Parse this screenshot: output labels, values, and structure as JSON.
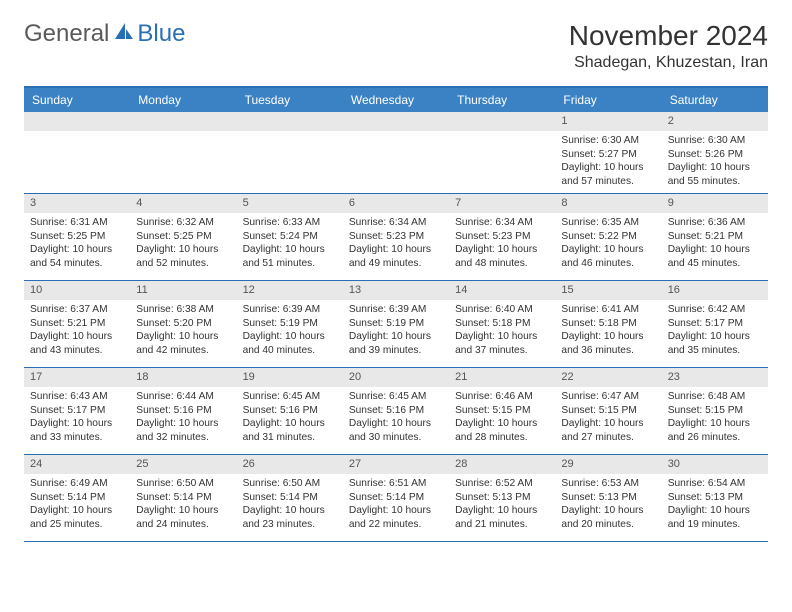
{
  "logo": {
    "general": "General",
    "blue": "Blue"
  },
  "header": {
    "title": "November 2024",
    "location": "Shadegan, Khuzestan, Iran"
  },
  "colors": {
    "header_bar": "#3b82c4",
    "border": "#2a6fb5",
    "day_number_bg": "#e8e8e8",
    "text": "#333333",
    "logo_gray": "#5a5a5a",
    "logo_blue": "#2a6fb5",
    "background": "#ffffff"
  },
  "typography": {
    "title_fontsize": 28,
    "location_fontsize": 16,
    "dayheader_fontsize": 12,
    "cell_fontsize": 10.2
  },
  "day_names": [
    "Sunday",
    "Monday",
    "Tuesday",
    "Wednesday",
    "Thursday",
    "Friday",
    "Saturday"
  ],
  "weeks": [
    [
      {
        "n": "",
        "sunrise": "",
        "sunset": "",
        "daylight": ""
      },
      {
        "n": "",
        "sunrise": "",
        "sunset": "",
        "daylight": ""
      },
      {
        "n": "",
        "sunrise": "",
        "sunset": "",
        "daylight": ""
      },
      {
        "n": "",
        "sunrise": "",
        "sunset": "",
        "daylight": ""
      },
      {
        "n": "",
        "sunrise": "",
        "sunset": "",
        "daylight": ""
      },
      {
        "n": "1",
        "sunrise": "Sunrise: 6:30 AM",
        "sunset": "Sunset: 5:27 PM",
        "daylight": "Daylight: 10 hours and 57 minutes."
      },
      {
        "n": "2",
        "sunrise": "Sunrise: 6:30 AM",
        "sunset": "Sunset: 5:26 PM",
        "daylight": "Daylight: 10 hours and 55 minutes."
      }
    ],
    [
      {
        "n": "3",
        "sunrise": "Sunrise: 6:31 AM",
        "sunset": "Sunset: 5:25 PM",
        "daylight": "Daylight: 10 hours and 54 minutes."
      },
      {
        "n": "4",
        "sunrise": "Sunrise: 6:32 AM",
        "sunset": "Sunset: 5:25 PM",
        "daylight": "Daylight: 10 hours and 52 minutes."
      },
      {
        "n": "5",
        "sunrise": "Sunrise: 6:33 AM",
        "sunset": "Sunset: 5:24 PM",
        "daylight": "Daylight: 10 hours and 51 minutes."
      },
      {
        "n": "6",
        "sunrise": "Sunrise: 6:34 AM",
        "sunset": "Sunset: 5:23 PM",
        "daylight": "Daylight: 10 hours and 49 minutes."
      },
      {
        "n": "7",
        "sunrise": "Sunrise: 6:34 AM",
        "sunset": "Sunset: 5:23 PM",
        "daylight": "Daylight: 10 hours and 48 minutes."
      },
      {
        "n": "8",
        "sunrise": "Sunrise: 6:35 AM",
        "sunset": "Sunset: 5:22 PM",
        "daylight": "Daylight: 10 hours and 46 minutes."
      },
      {
        "n": "9",
        "sunrise": "Sunrise: 6:36 AM",
        "sunset": "Sunset: 5:21 PM",
        "daylight": "Daylight: 10 hours and 45 minutes."
      }
    ],
    [
      {
        "n": "10",
        "sunrise": "Sunrise: 6:37 AM",
        "sunset": "Sunset: 5:21 PM",
        "daylight": "Daylight: 10 hours and 43 minutes."
      },
      {
        "n": "11",
        "sunrise": "Sunrise: 6:38 AM",
        "sunset": "Sunset: 5:20 PM",
        "daylight": "Daylight: 10 hours and 42 minutes."
      },
      {
        "n": "12",
        "sunrise": "Sunrise: 6:39 AM",
        "sunset": "Sunset: 5:19 PM",
        "daylight": "Daylight: 10 hours and 40 minutes."
      },
      {
        "n": "13",
        "sunrise": "Sunrise: 6:39 AM",
        "sunset": "Sunset: 5:19 PM",
        "daylight": "Daylight: 10 hours and 39 minutes."
      },
      {
        "n": "14",
        "sunrise": "Sunrise: 6:40 AM",
        "sunset": "Sunset: 5:18 PM",
        "daylight": "Daylight: 10 hours and 37 minutes."
      },
      {
        "n": "15",
        "sunrise": "Sunrise: 6:41 AM",
        "sunset": "Sunset: 5:18 PM",
        "daylight": "Daylight: 10 hours and 36 minutes."
      },
      {
        "n": "16",
        "sunrise": "Sunrise: 6:42 AM",
        "sunset": "Sunset: 5:17 PM",
        "daylight": "Daylight: 10 hours and 35 minutes."
      }
    ],
    [
      {
        "n": "17",
        "sunrise": "Sunrise: 6:43 AM",
        "sunset": "Sunset: 5:17 PM",
        "daylight": "Daylight: 10 hours and 33 minutes."
      },
      {
        "n": "18",
        "sunrise": "Sunrise: 6:44 AM",
        "sunset": "Sunset: 5:16 PM",
        "daylight": "Daylight: 10 hours and 32 minutes."
      },
      {
        "n": "19",
        "sunrise": "Sunrise: 6:45 AM",
        "sunset": "Sunset: 5:16 PM",
        "daylight": "Daylight: 10 hours and 31 minutes."
      },
      {
        "n": "20",
        "sunrise": "Sunrise: 6:45 AM",
        "sunset": "Sunset: 5:16 PM",
        "daylight": "Daylight: 10 hours and 30 minutes."
      },
      {
        "n": "21",
        "sunrise": "Sunrise: 6:46 AM",
        "sunset": "Sunset: 5:15 PM",
        "daylight": "Daylight: 10 hours and 28 minutes."
      },
      {
        "n": "22",
        "sunrise": "Sunrise: 6:47 AM",
        "sunset": "Sunset: 5:15 PM",
        "daylight": "Daylight: 10 hours and 27 minutes."
      },
      {
        "n": "23",
        "sunrise": "Sunrise: 6:48 AM",
        "sunset": "Sunset: 5:15 PM",
        "daylight": "Daylight: 10 hours and 26 minutes."
      }
    ],
    [
      {
        "n": "24",
        "sunrise": "Sunrise: 6:49 AM",
        "sunset": "Sunset: 5:14 PM",
        "daylight": "Daylight: 10 hours and 25 minutes."
      },
      {
        "n": "25",
        "sunrise": "Sunrise: 6:50 AM",
        "sunset": "Sunset: 5:14 PM",
        "daylight": "Daylight: 10 hours and 24 minutes."
      },
      {
        "n": "26",
        "sunrise": "Sunrise: 6:50 AM",
        "sunset": "Sunset: 5:14 PM",
        "daylight": "Daylight: 10 hours and 23 minutes."
      },
      {
        "n": "27",
        "sunrise": "Sunrise: 6:51 AM",
        "sunset": "Sunset: 5:14 PM",
        "daylight": "Daylight: 10 hours and 22 minutes."
      },
      {
        "n": "28",
        "sunrise": "Sunrise: 6:52 AM",
        "sunset": "Sunset: 5:13 PM",
        "daylight": "Daylight: 10 hours and 21 minutes."
      },
      {
        "n": "29",
        "sunrise": "Sunrise: 6:53 AM",
        "sunset": "Sunset: 5:13 PM",
        "daylight": "Daylight: 10 hours and 20 minutes."
      },
      {
        "n": "30",
        "sunrise": "Sunrise: 6:54 AM",
        "sunset": "Sunset: 5:13 PM",
        "daylight": "Daylight: 10 hours and 19 minutes."
      }
    ]
  ]
}
